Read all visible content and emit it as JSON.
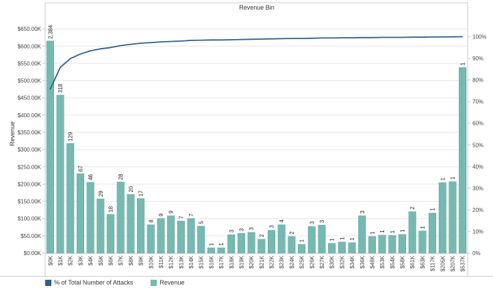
{
  "colors": {
    "bar": "#76b9b1",
    "bar_stroke": "#5fa59d",
    "line": "#2d5f8b",
    "grid": "#e6e6e6",
    "frame": "#c8c8c8"
  },
  "chart_data": {
    "type": "bar",
    "title": "Revenue Bin",
    "xlabel": "",
    "ylabel": "Revenue",
    "ylim": [
      0,
      690000
    ],
    "y2lim": [
      0,
      1.1
    ],
    "yticks": [
      "$0.00K",
      "$50.00K",
      "$100.00K",
      "$150.00K",
      "$200.00K",
      "$250.00K",
      "$300.00K",
      "$350.00K",
      "$400.00K",
      "$450.00K",
      "$500.00K",
      "$550.00K",
      "$600.00K",
      "$650.00K"
    ],
    "y2ticks": [
      "0%",
      "10%",
      "20%",
      "30%",
      "40%",
      "50%",
      "60%",
      "70%",
      "80%",
      "90%",
      "100%"
    ],
    "categories": [
      "$0K",
      "$1K",
      "$2K",
      "$3K",
      "$4K",
      "$5K",
      "$6K",
      "$7K",
      "$8K",
      "$9K",
      "$10K",
      "$11K",
      "$12K",
      "$13K",
      "$14K",
      "$15K",
      "$16K",
      "$17K",
      "$18K",
      "$19K",
      "$20K",
      "$21K",
      "$22K",
      "$23K",
      "$24K",
      "$25K",
      "$26K",
      "$27K",
      "$30K",
      "$32K",
      "$34K",
      "$36K",
      "$48K",
      "$53K",
      "$54K",
      "$58K",
      "$61K",
      "$63K",
      "$117K",
      "$205K",
      "$207K",
      "$537K"
    ],
    "series": [
      {
        "name": "Revenue",
        "axis": "left",
        "values": [
          615000,
          458000,
          318000,
          230000,
          205000,
          157000,
          112000,
          206000,
          170000,
          158000,
          82000,
          100000,
          108000,
          93000,
          100000,
          78000,
          15000,
          15000,
          53000,
          57000,
          60000,
          40000,
          66000,
          82000,
          48000,
          25000,
          77000,
          81000,
          28000,
          32000,
          30000,
          108000,
          48000,
          52000,
          51000,
          54000,
          120000,
          64000,
          116000,
          204000,
          207000,
          538000
        ],
        "data_labels": [
          "2,384",
          "318",
          "129",
          "67",
          "46",
          "29",
          "18",
          "28",
          "20",
          "17",
          "8",
          "9",
          "9",
          "7",
          "7",
          "5",
          "1",
          "1",
          "3",
          "3",
          "3",
          "2",
          "3",
          "4",
          "2",
          "1",
          "3",
          "3",
          "1",
          "1",
          "1",
          "3",
          "1",
          "1",
          "1",
          "1",
          "2",
          "1",
          "1",
          "1",
          "1",
          "1"
        ]
      },
      {
        "name": "% of Total Number of Attacks",
        "axis": "right",
        "type": "line",
        "values": [
          0.757,
          0.858,
          0.899,
          0.92,
          0.935,
          0.944,
          0.95,
          0.959,
          0.965,
          0.97,
          0.973,
          0.976,
          0.978,
          0.98,
          0.983,
          0.984,
          0.985,
          0.985,
          0.986,
          0.987,
          0.988,
          0.989,
          0.99,
          0.991,
          0.992,
          0.992,
          0.993,
          0.994,
          0.994,
          0.995,
          0.995,
          0.996,
          0.996,
          0.997,
          0.997,
          0.997,
          0.998,
          0.998,
          0.999,
          0.999,
          0.9995,
          1.0
        ]
      }
    ],
    "legend": {
      "position": "bottom-left",
      "entries": [
        {
          "label": "% of Total Number of Attacks",
          "color": "#2d5f8b"
        },
        {
          "label": "Revenue",
          "color": "#76b9b1"
        }
      ]
    }
  }
}
